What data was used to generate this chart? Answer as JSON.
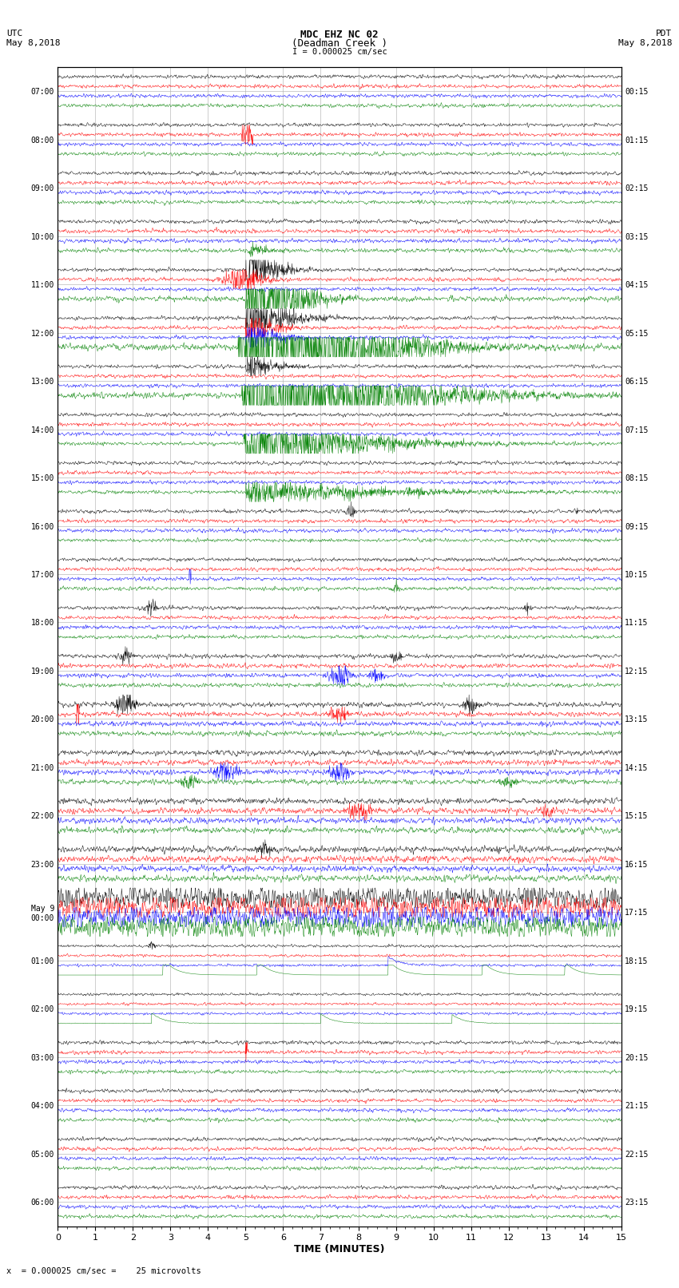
{
  "title_line1": "MDC EHZ NC 02",
  "title_line2": "(Deadman Creek )",
  "title_line3": "I = 0.000025 cm/sec",
  "left_header": "UTC\nMay 8,2018",
  "right_header": "PDT\nMay 8,2018",
  "xlabel": "TIME (MINUTES)",
  "footer": "x  = 0.000025 cm/sec =    25 microvolts",
  "utc_labels": [
    "07:00",
    "08:00",
    "09:00",
    "10:00",
    "11:00",
    "12:00",
    "13:00",
    "14:00",
    "15:00",
    "16:00",
    "17:00",
    "18:00",
    "19:00",
    "20:00",
    "21:00",
    "22:00",
    "23:00",
    "May 9\n00:00",
    "01:00",
    "02:00",
    "03:00",
    "04:00",
    "05:00",
    "06:00"
  ],
  "pdt_labels": [
    "00:15",
    "01:15",
    "02:15",
    "03:15",
    "04:15",
    "05:15",
    "06:15",
    "07:15",
    "08:15",
    "09:15",
    "10:15",
    "11:15",
    "12:15",
    "13:15",
    "14:15",
    "15:15",
    "16:15",
    "17:15",
    "18:15",
    "19:15",
    "20:15",
    "21:15",
    "22:15",
    "23:15"
  ],
  "n_rows": 24,
  "n_minutes": 15,
  "bg_color": "#ffffff",
  "grid_color": "#aaaaaa",
  "trace_colors": [
    "black",
    "red",
    "blue",
    "green"
  ],
  "x_ticks": [
    0,
    1,
    2,
    3,
    4,
    5,
    6,
    7,
    8,
    9,
    10,
    11,
    12,
    13,
    14,
    15
  ],
  "seed": 42
}
